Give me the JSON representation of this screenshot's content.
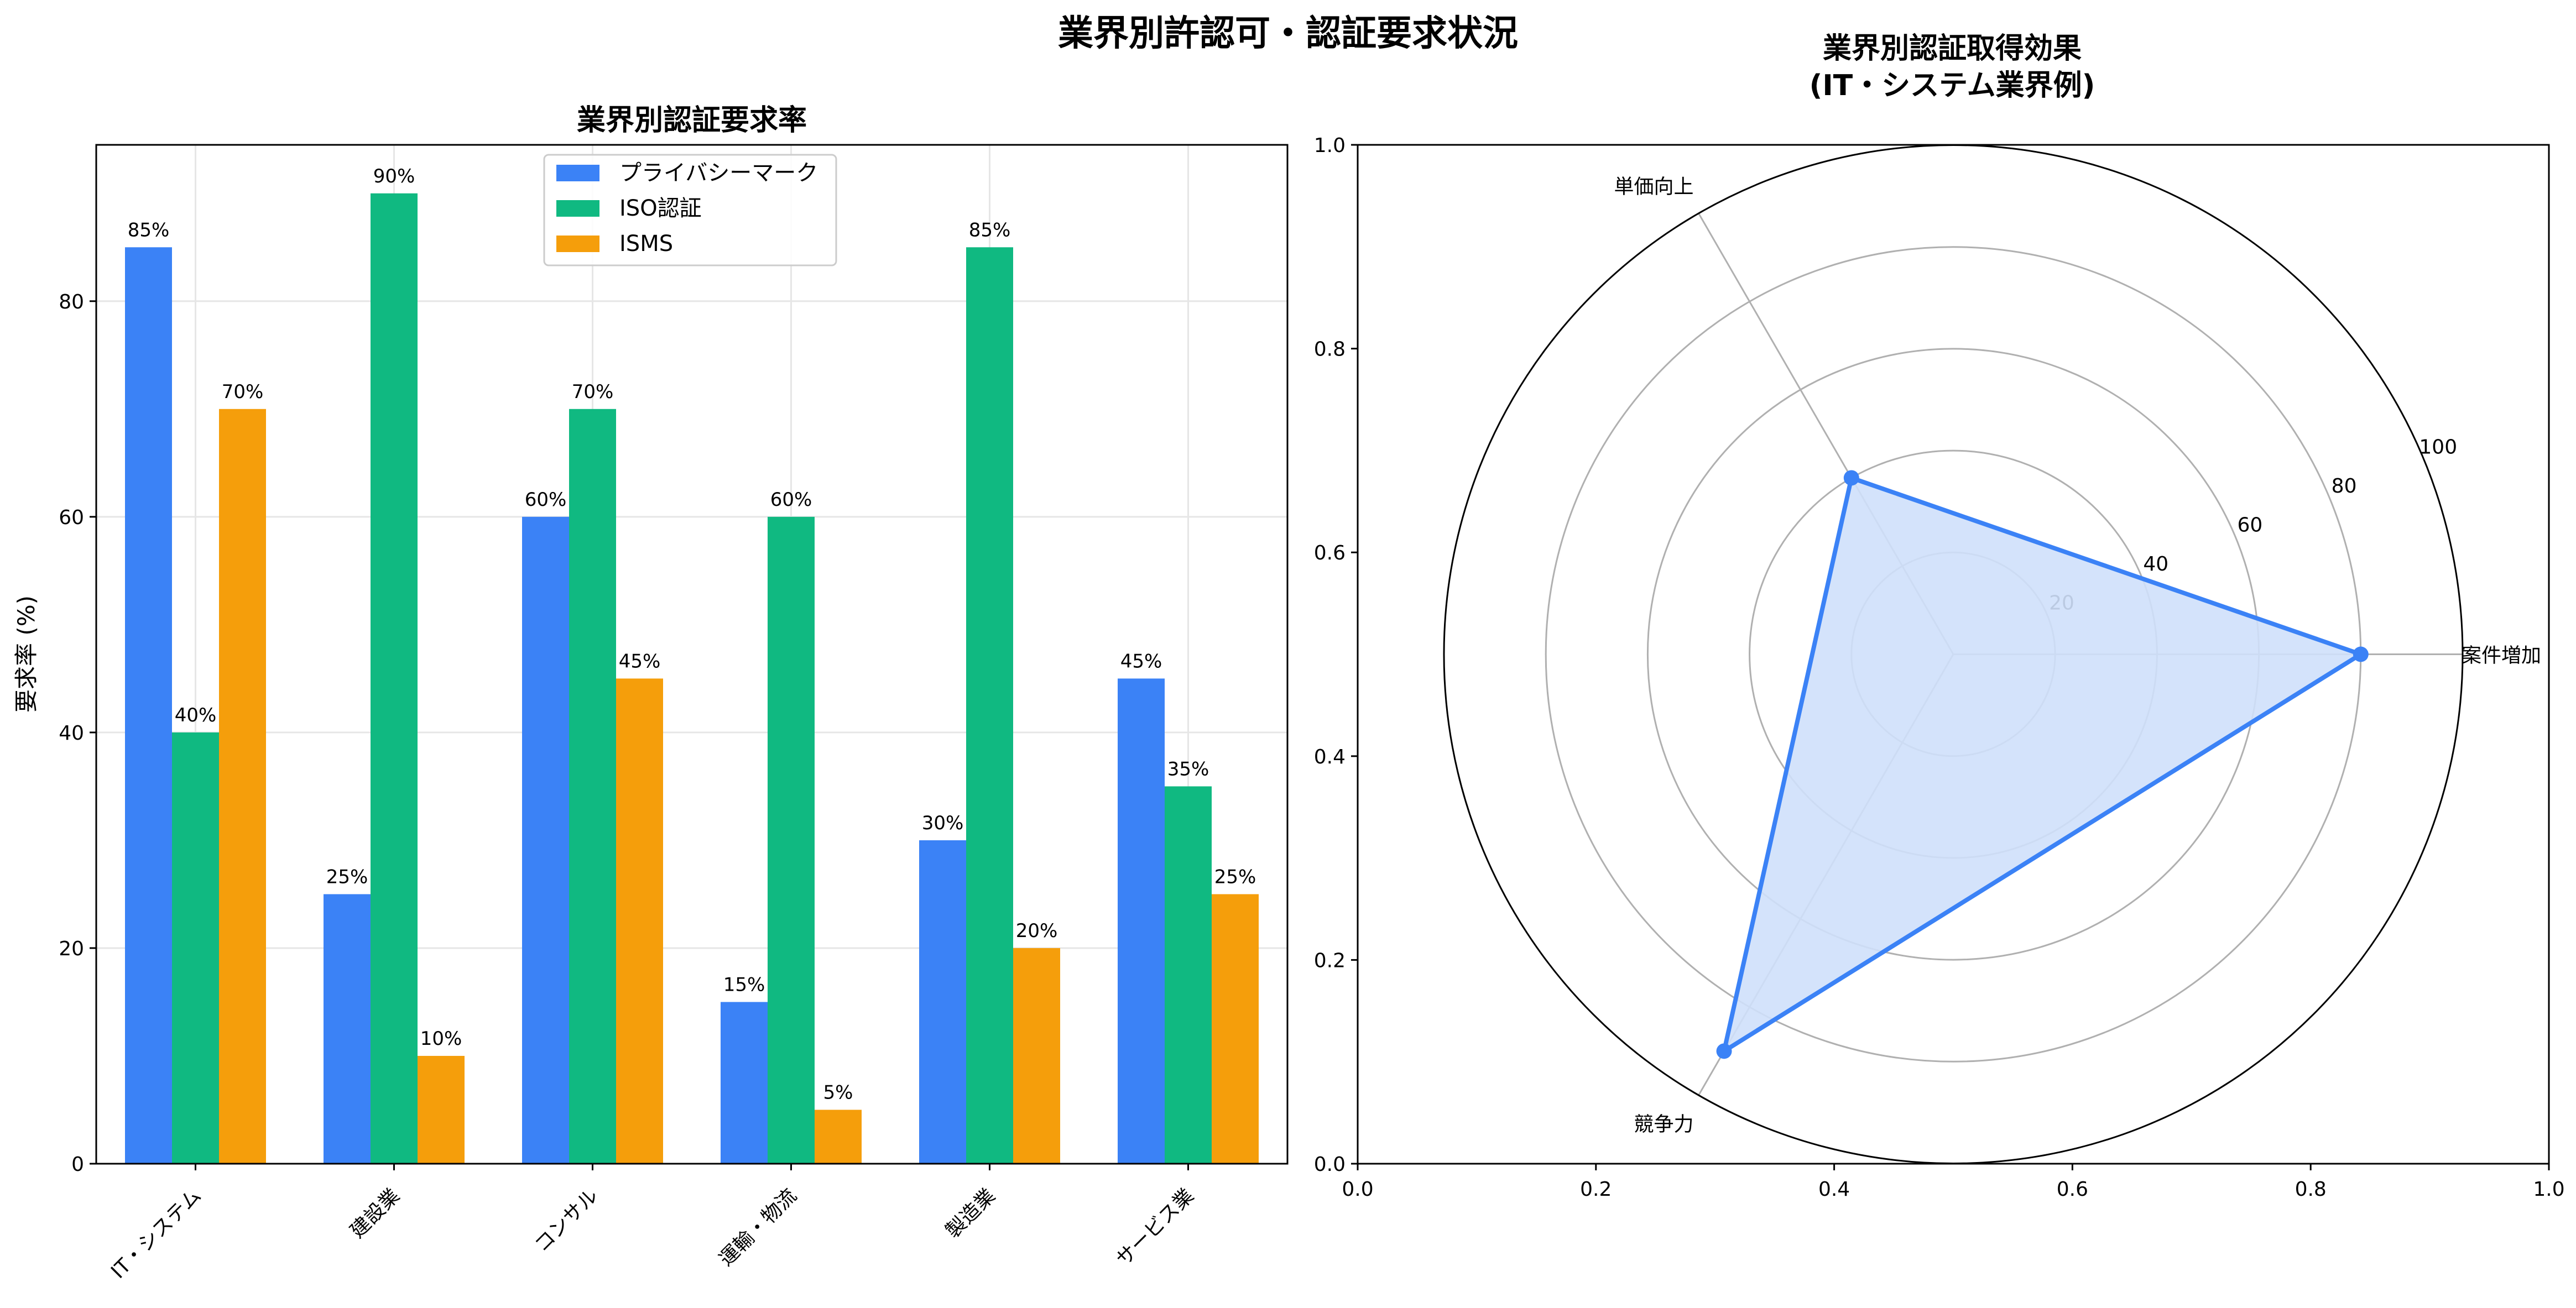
{
  "suptitle": "業界別許認可・認証要求状況",
  "chart_data": [
    {
      "type": "bar",
      "title": "業界別認証要求率",
      "xlabel": "",
      "ylabel": "要求率 (%)",
      "ylim": [
        0,
        94.5
      ],
      "yticks": [
        0,
        20,
        40,
        60,
        80
      ],
      "categories": [
        "IT・システム",
        "建設業",
        "コンサル",
        "運輸・物流",
        "製造業",
        "サービス業"
      ],
      "series": [
        {
          "name": "プライバシーマーク",
          "color": "#3b82f6",
          "values": [
            85,
            25,
            60,
            15,
            30,
            45
          ],
          "labels": [
            "85%",
            "25%",
            "60%",
            "15%",
            "30%",
            "45%"
          ]
        },
        {
          "name": "ISO認証",
          "color": "#10b981",
          "values": [
            40,
            90,
            70,
            60,
            85,
            35
          ],
          "labels": [
            "40%",
            "90%",
            "70%",
            "60%",
            "85%",
            "35%"
          ]
        },
        {
          "name": "ISMS",
          "color": "#f59e0b",
          "values": [
            70,
            10,
            45,
            5,
            20,
            25
          ],
          "labels": [
            "70%",
            "10%",
            "45%",
            "5%",
            "20%",
            "25%"
          ]
        }
      ],
      "grid": true,
      "legend": "top-center"
    },
    {
      "type": "radar",
      "title": "業界別認証取得効果\n(IT・システム業界例)",
      "axes": [
        "案件増加",
        "単価向上",
        "競争力"
      ],
      "values": [
        80,
        40,
        90
      ],
      "rticks": [
        20,
        40,
        60,
        80,
        100
      ],
      "rlim": [
        0,
        100
      ],
      "color": "#3b82f6",
      "fill": "#cfe0fb",
      "frame_xlim": [
        0,
        1
      ],
      "frame_ylim": [
        0,
        1
      ],
      "frame_xticks": [
        "0.0",
        "0.2",
        "0.4",
        "0.6",
        "0.8",
        "1.0"
      ],
      "frame_yticks": [
        "0.0",
        "0.2",
        "0.4",
        "0.6",
        "0.8",
        "1.0"
      ]
    }
  ]
}
